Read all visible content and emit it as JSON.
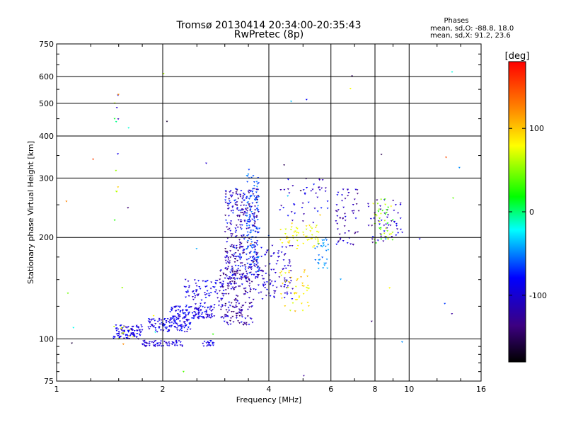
{
  "chart_data": {
    "type": "scatter",
    "title": "Tromsø 20130414 20:34:00-20:35:43",
    "subtitle": "RwPretec (8p)",
    "xlabel": "Frequency [MHz]",
    "ylabel": "Stationary phase Virtual Height [km]",
    "x_scale": "log",
    "y_scale": "log",
    "xlim": [
      1,
      16
    ],
    "ylim": [
      75,
      750
    ],
    "x_ticks": [
      1,
      2,
      4,
      6,
      8,
      10,
      16
    ],
    "x_tick_labels": [
      "1",
      "2",
      "4",
      "6",
      "8",
      "10",
      "16"
    ],
    "y_ticks": [
      75,
      100,
      200,
      300,
      400,
      500,
      600,
      750
    ],
    "y_tick_labels": [
      "75",
      "100",
      "200",
      "300",
      "400",
      "500",
      "600",
      "750"
    ],
    "grid": true,
    "phase_info": {
      "heading": "Phases",
      "line_o": "mean, sd,O: -88.8, 18.0",
      "line_x": "mean, sd,X:  91.2, 23.6"
    },
    "colorbar": {
      "label": "[deg]",
      "range": [
        -180,
        180
      ],
      "ticks": [
        100,
        0,
        -100
      ],
      "tick_labels": [
        "100",
        "0",
        "-100"
      ]
    },
    "groups": [
      {
        "n": 90,
        "x": [
          1.45,
          1.75
        ],
        "y": [
          100,
          110
        ],
        "phase": [
          -105,
          -75
        ]
      },
      {
        "n": 10,
        "x": [
          1.45,
          1.65
        ],
        "y": [
          100,
          110
        ],
        "phase": [
          90,
          140
        ]
      },
      {
        "n": 60,
        "x": [
          1.75,
          2.3
        ],
        "y": [
          95,
          99
        ],
        "phase": [
          -110,
          -80
        ]
      },
      {
        "n": 120,
        "x": [
          1.8,
          2.4
        ],
        "y": [
          105,
          115
        ],
        "phase": [
          -110,
          -70
        ]
      },
      {
        "n": 130,
        "x": [
          2.1,
          2.8
        ],
        "y": [
          115,
          125
        ],
        "phase": [
          -110,
          -70
        ]
      },
      {
        "n": 80,
        "x": [
          2.3,
          3.0
        ],
        "y": [
          125,
          150
        ],
        "phase": [
          -110,
          -70
        ]
      },
      {
        "n": 180,
        "x": [
          2.9,
          3.6
        ],
        "y": [
          110,
          160
        ],
        "phase": [
          -150,
          -80
        ]
      },
      {
        "n": 340,
        "x": [
          3.0,
          3.75
        ],
        "y": [
          150,
          280
        ],
        "phase": [
          -150,
          -60
        ]
      },
      {
        "n": 90,
        "x": [
          3.45,
          3.75
        ],
        "y": [
          170,
          320
        ],
        "phase": [
          -70,
          -40
        ]
      },
      {
        "n": 120,
        "x": [
          3.6,
          4.7
        ],
        "y": [
          130,
          190
        ],
        "phase": [
          -120,
          -80
        ]
      },
      {
        "n": 20,
        "x": [
          2.6,
          2.8
        ],
        "y": [
          95,
          99
        ],
        "phase": [
          -100,
          -70
        ]
      },
      {
        "n": 55,
        "x": [
          4.3,
          5.6
        ],
        "y": [
          185,
          220
        ],
        "phase": [
          100,
          130
        ]
      },
      {
        "n": 45,
        "x": [
          4.3,
          5.2
        ],
        "y": [
          120,
          160
        ],
        "phase": [
          100,
          140
        ]
      },
      {
        "n": 45,
        "x": [
          4.3,
          5.9
        ],
        "y": [
          220,
          300
        ],
        "phase": [
          -130,
          -70
        ]
      },
      {
        "n": 30,
        "x": [
          5.4,
          5.9
        ],
        "y": [
          160,
          200
        ],
        "phase": [
          -60,
          -30
        ]
      },
      {
        "n": 55,
        "x": [
          6.2,
          7.2
        ],
        "y": [
          190,
          280
        ],
        "phase": [
          -140,
          -80
        ]
      },
      {
        "n": 50,
        "x": [
          7.6,
          9.6
        ],
        "y": [
          190,
          260
        ],
        "phase": [
          -140,
          -80
        ]
      },
      {
        "n": 40,
        "x": [
          7.9,
          9.0
        ],
        "y": [
          190,
          260
        ],
        "phase": [
          50,
          120
        ]
      },
      {
        "n": 12,
        "x": [
          1.46,
          1.5
        ],
        "y": [
          220,
          560
        ],
        "phase": [
          -120,
          130
        ]
      },
      {
        "n": 45,
        "x": [
          1.05,
          14.0
        ],
        "y": [
          75,
          620
        ],
        "phase": [
          -170,
          170
        ]
      }
    ]
  }
}
